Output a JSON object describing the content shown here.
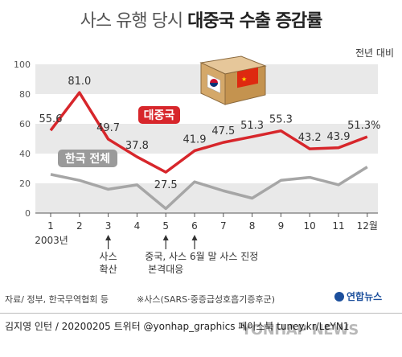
{
  "title_light": "사스 유행 당시",
  "title_bold": "대중국 수출 증감률",
  "unit_label": "전년 대비",
  "x_year_label": "2003년",
  "chart_data": {
    "type": "line",
    "x": [
      1,
      2,
      3,
      4,
      5,
      6,
      7,
      8,
      9,
      10,
      11,
      12
    ],
    "x_tick_labels": [
      "1",
      "2",
      "3",
      "4",
      "5",
      "6",
      "7",
      "8",
      "9",
      "10",
      "11",
      "12월"
    ],
    "ylim": [
      0,
      100
    ],
    "y_ticks": [
      0,
      20,
      40,
      60,
      80,
      100
    ],
    "series": [
      {
        "name": "대중국",
        "color": "#d7262b",
        "values": [
          55.6,
          81.0,
          49.7,
          37.8,
          27.5,
          41.9,
          47.5,
          51.3,
          55.3,
          43.2,
          43.9,
          51.3
        ],
        "value_labels": [
          "55.6",
          "81.0",
          "49.7",
          "37.8",
          "27.5",
          "41.9",
          "47.5",
          "51.3",
          "55.3",
          "43.2",
          "43.9",
          "51.3%"
        ]
      },
      {
        "name": "한국 전체",
        "color": "#a6a6a6",
        "values": [
          26,
          22,
          16,
          19,
          3,
          21,
          15,
          10,
          22,
          24,
          19,
          31
        ]
      }
    ],
    "annotations": [
      {
        "x": 3,
        "text": "사스\n확산"
      },
      {
        "x": 5,
        "text": "중국, 사스\n본격대응"
      },
      {
        "x": 6,
        "text": "6월 말 사스 진정"
      }
    ]
  },
  "source": "자료/ 정부, 한국무역협회 등",
  "footnote": "※사스(SARS·중증급성호흡기증후군)",
  "credit": "김지영 인턴 / 20200205  트위터 @yonhap_graphics  페이스북 tuney.kr/LeYN1",
  "logo_text": "연합뉴스",
  "watermark": "YONHAP NEWS",
  "colors": {
    "band": "#e9e9e9",
    "red": "#d7262b",
    "gray": "#a6a6a6"
  }
}
